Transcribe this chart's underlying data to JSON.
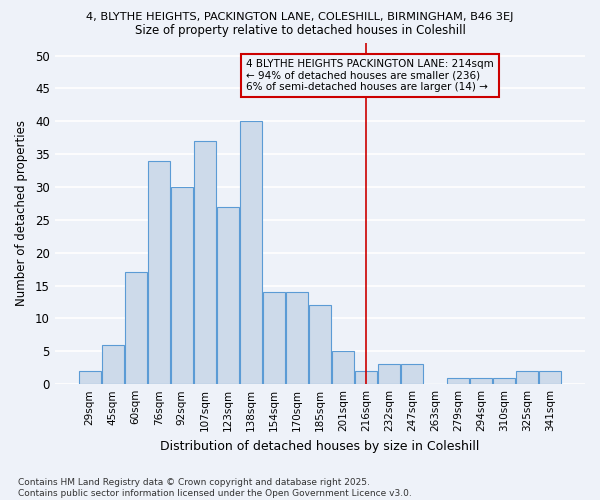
{
  "title1": "4, BLYTHE HEIGHTS, PACKINGTON LANE, COLESHILL, BIRMINGHAM, B46 3EJ",
  "title2": "Size of property relative to detached houses in Coleshill",
  "xlabel": "Distribution of detached houses by size in Coleshill",
  "ylabel": "Number of detached properties",
  "categories": [
    "29sqm",
    "45sqm",
    "60sqm",
    "76sqm",
    "92sqm",
    "107sqm",
    "123sqm",
    "138sqm",
    "154sqm",
    "170sqm",
    "185sqm",
    "201sqm",
    "216sqm",
    "232sqm",
    "247sqm",
    "263sqm",
    "279sqm",
    "294sqm",
    "310sqm",
    "325sqm",
    "341sqm"
  ],
  "values": [
    2,
    6,
    17,
    34,
    30,
    37,
    27,
    40,
    14,
    14,
    12,
    5,
    2,
    3,
    3,
    0,
    1,
    1,
    1,
    2,
    2
  ],
  "bar_color": "#cddaea",
  "bar_edge_color": "#5b9bd5",
  "vline_x_index": 12,
  "vline_color": "#cc0000",
  "annotation_lines": [
    "4 BLYTHE HEIGHTS PACKINGTON LANE: 214sqm",
    "← 94% of detached houses are smaller (236)",
    "6% of semi-detached houses are larger (14) →"
  ],
  "annotation_box_color": "#cc0000",
  "ylim": [
    0,
    52
  ],
  "yticks": [
    0,
    5,
    10,
    15,
    20,
    25,
    30,
    35,
    40,
    45,
    50
  ],
  "background_color": "#eef2f9",
  "grid_color": "#ffffff",
  "footnote": "Contains HM Land Registry data © Crown copyright and database right 2025.\nContains public sector information licensed under the Open Government Licence v3.0."
}
